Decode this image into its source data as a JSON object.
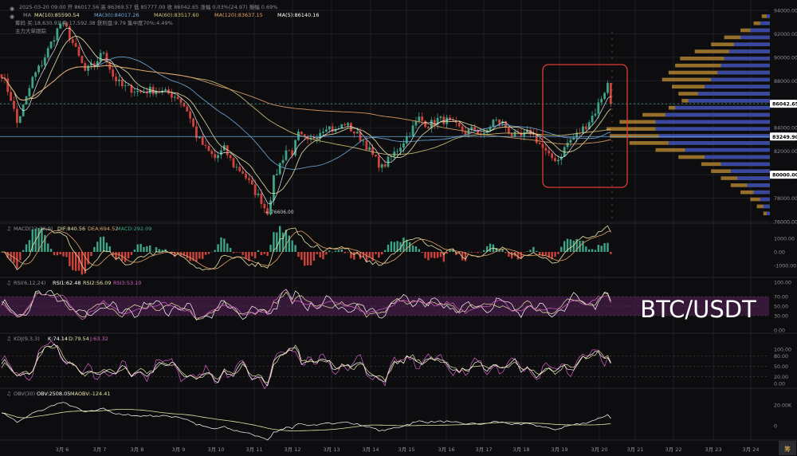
{
  "colors": {
    "background": "#0d0d0f",
    "grid": "#1d1f24",
    "up": "#3ea487",
    "down": "#d0433c",
    "text": "#8b8f98",
    "ma10": "#e8e3a6",
    "ma30": "#6fa8dc",
    "ma60": "#d4c27a",
    "ma120": "#e3a26a",
    "ma5": "#ffffff",
    "volume_profile_blue": "#3346a6",
    "volume_profile_gold": "#a57a2f",
    "highlight_box": "#e03a34",
    "rsi_band": "#3a1a3d",
    "price_label_bg": "#ffffff",
    "price_label_text": "#000000"
  },
  "header": {
    "ohlc_line": "2025-03-20 09:00  开 86017.56  高 86369.57  低 85777.00  收 86042.65  涨幅 0.03%(24.97)  振幅 0.69%",
    "ma_line": {
      "label": "MA",
      "ma10": "MA(10):85590.54",
      "ma30": "MA(30):84017.26",
      "ma60": "MA(60):83517.60",
      "ma120": "MA(120):83637.15",
      "ma5": "MA(5):86140.16"
    },
    "chip_line": "筹码  买:18,630.91  卖:17,592.38  获利盘:9.79  集中度70%:4.49%",
    "tracking_line": "主力大单跟踪",
    "watermark": "BTC/USDT"
  },
  "y_axis": {
    "labels": [
      "94000.00",
      "92000.00",
      "90000.00",
      "88000.00",
      "86000.00",
      "84000.00",
      "82000.00",
      "80000.00",
      "78000.00",
      "76000.00"
    ],
    "current_price": "86042.65",
    "marker_price": "83249.90",
    "low_price": "76606.00",
    "low_annotation": "← 76606.00"
  },
  "x_axis": {
    "labels": [
      "3月 6",
      "3月 7",
      "3月 8",
      "3月 9",
      "3月 10",
      "3月 11",
      "3月 12",
      "3月 13",
      "3月 14",
      "3月 15",
      "3月 16",
      "3月 17",
      "3月 18",
      "3月 19",
      "3月 20",
      "3月 21",
      "3月 22",
      "3月 23",
      "3月 24"
    ],
    "corner_label": "筹"
  },
  "panels": {
    "macd": {
      "title": "MACD(12,26,9)",
      "dif": "DIF:840.56",
      "dea": "DEA:694.52",
      "macd": "MACD:292.09",
      "axis": [
        "1000.00",
        "0.00",
        "-1000.00"
      ]
    },
    "rsi": {
      "title": "RSI(6,12,24)",
      "rsi1": "RSI1:62.48",
      "rsi2": "RSI2:56.09",
      "rsi3": "RSI3:53.10",
      "axis": [
        "100.00",
        "70.00",
        "50.00",
        "30.00",
        "0.00"
      ]
    },
    "kdj": {
      "title": "KDJ(9,3,3)",
      "k": "K:74.14",
      "d": "D:79.54",
      "j": "J:63.32",
      "axis": [
        "100.00",
        "80.00",
        "50.00",
        "20.00",
        "0.00"
      ]
    },
    "obv": {
      "title": "OBV(30)",
      "obv": "OBV:2508.05",
      "maobv": "MAOBV:-124.41",
      "axis": [
        "20.00K",
        "0"
      ]
    }
  },
  "chart_data": {
    "type": "candlestick",
    "symbol": "BTC/USDT",
    "interval": "hourly",
    "x_range": [
      "3月 5",
      "3月 24"
    ],
    "ylim": [
      75500,
      94500
    ],
    "price_path": [
      [
        0,
        88600
      ],
      [
        3,
        86500
      ],
      [
        5,
        84400
      ],
      [
        8,
        86500
      ],
      [
        10,
        88200
      ],
      [
        13,
        89500
      ],
      [
        16,
        91200
      ],
      [
        19,
        92900
      ],
      [
        21,
        92400
      ],
      [
        24,
        90600
      ],
      [
        27,
        88800
      ],
      [
        30,
        89400
      ],
      [
        33,
        90500
      ],
      [
        36,
        88400
      ],
      [
        39,
        87500
      ],
      [
        42,
        87300
      ],
      [
        45,
        87000
      ],
      [
        48,
        87200
      ],
      [
        51,
        87100
      ],
      [
        54,
        86900
      ],
      [
        57,
        86600
      ],
      [
        60,
        85500
      ],
      [
        63,
        83300
      ],
      [
        66,
        82200
      ],
      [
        69,
        81400
      ],
      [
        72,
        82200
      ],
      [
        75,
        80800
      ],
      [
        78,
        80200
      ],
      [
        81,
        78900
      ],
      [
        84,
        77800
      ],
      [
        86,
        76606
      ],
      [
        88,
        79600
      ],
      [
        90,
        80900
      ],
      [
        92,
        82100
      ],
      [
        94,
        81900
      ],
      [
        96,
        83400
      ],
      [
        99,
        82700
      ],
      [
        102,
        83500
      ],
      [
        105,
        84200
      ],
      [
        108,
        83700
      ],
      [
        111,
        84400
      ],
      [
        114,
        83600
      ],
      [
        117,
        82900
      ],
      [
        120,
        81600
      ],
      [
        123,
        80600
      ],
      [
        126,
        81500
      ],
      [
        129,
        82500
      ],
      [
        132,
        83600
      ],
      [
        135,
        84800
      ],
      [
        138,
        84200
      ],
      [
        141,
        84700
      ],
      [
        144,
        84600
      ],
      [
        147,
        84100
      ],
      [
        150,
        83600
      ],
      [
        153,
        83900
      ],
      [
        156,
        83300
      ],
      [
        159,
        84600
      ],
      [
        162,
        84400
      ],
      [
        165,
        83400
      ],
      [
        168,
        83200
      ],
      [
        171,
        83700
      ],
      [
        174,
        82600
      ],
      [
        177,
        81500
      ],
      [
        180,
        81300
      ],
      [
        183,
        82700
      ],
      [
        186,
        83400
      ],
      [
        189,
        84200
      ],
      [
        192,
        85400
      ],
      [
        194,
        86600
      ],
      [
        196,
        87700
      ],
      [
        197,
        86042.65
      ]
    ],
    "moving_averages": [
      "MA(10)",
      "MA(30)",
      "MA(60)",
      "MA(120)",
      "MA(5)"
    ],
    "volume_profile": [
      {
        "price": 93500,
        "blue": 0.02,
        "gold": 0.05
      },
      {
        "price": 92900,
        "blue": 0.06,
        "gold": 0.1
      },
      {
        "price": 92300,
        "blue": 0.12,
        "gold": 0.18
      },
      {
        "price": 91700,
        "blue": 0.18,
        "gold": 0.28
      },
      {
        "price": 91100,
        "blue": 0.22,
        "gold": 0.36
      },
      {
        "price": 90500,
        "blue": 0.25,
        "gold": 0.46
      },
      {
        "price": 89900,
        "blue": 0.28,
        "gold": 0.55
      },
      {
        "price": 89300,
        "blue": 0.3,
        "gold": 0.58
      },
      {
        "price": 88700,
        "blue": 0.32,
        "gold": 0.62
      },
      {
        "price": 88100,
        "blue": 0.36,
        "gold": 0.66
      },
      {
        "price": 87500,
        "blue": 0.4,
        "gold": 0.6
      },
      {
        "price": 86900,
        "blue": 0.44,
        "gold": 0.56
      },
      {
        "price": 86300,
        "blue": 0.5,
        "gold": 0.54
      },
      {
        "price": 85700,
        "blue": 0.58,
        "gold": 0.62
      },
      {
        "price": 85100,
        "blue": 0.64,
        "gold": 0.78
      },
      {
        "price": 84500,
        "blue": 0.7,
        "gold": 0.92
      },
      {
        "price": 83900,
        "blue": 0.7,
        "gold": 1.0
      },
      {
        "price": 83300,
        "blue": 0.68,
        "gold": 0.98
      },
      {
        "price": 82700,
        "blue": 0.62,
        "gold": 0.86
      },
      {
        "price": 82100,
        "blue": 0.52,
        "gold": 0.7
      },
      {
        "price": 81500,
        "blue": 0.4,
        "gold": 0.56
      },
      {
        "price": 80900,
        "blue": 0.3,
        "gold": 0.42
      },
      {
        "price": 80300,
        "blue": 0.24,
        "gold": 0.36
      },
      {
        "price": 79700,
        "blue": 0.2,
        "gold": 0.3
      },
      {
        "price": 79100,
        "blue": 0.14,
        "gold": 0.24
      },
      {
        "price": 78500,
        "blue": 0.1,
        "gold": 0.18
      },
      {
        "price": 77900,
        "blue": 0.06,
        "gold": 0.12
      },
      {
        "price": 77300,
        "blue": 0.04,
        "gold": 0.08
      },
      {
        "price": 76700,
        "blue": 0.02,
        "gold": 0.04
      }
    ]
  }
}
